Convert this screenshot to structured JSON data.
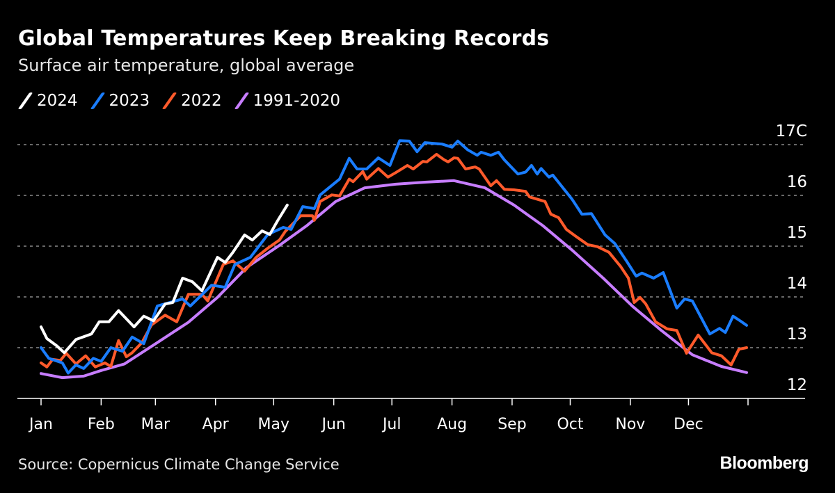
{
  "header": {
    "title": "Global Temperatures Keep Breaking Records",
    "subtitle": "Surface air temperature, global average"
  },
  "footer": {
    "source": "Source: Copernicus Climate Change Service",
    "logo": "Bloomberg"
  },
  "chart_data": {
    "type": "line",
    "title": "Global Temperatures Keep Breaking Records",
    "subtitle": "Surface air temperature, global average",
    "xlabel": "",
    "ylabel": "",
    "x_ticks": [
      "Jan",
      "Feb",
      "Mar",
      "Apr",
      "May",
      "Jun",
      "Jul",
      "Aug",
      "Sep",
      "Oct",
      "Nov",
      "Dec"
    ],
    "y_ticks": [
      {
        "value": 12,
        "label": "12"
      },
      {
        "value": 13,
        "label": "13"
      },
      {
        "value": 14,
        "label": "14"
      },
      {
        "value": 15,
        "label": "15"
      },
      {
        "value": 16,
        "label": "16"
      },
      {
        "value": 17,
        "label": "17C"
      }
    ],
    "ylim": [
      12,
      17
    ],
    "grid": "horizontal dashed",
    "legend_position": "top-left",
    "series": [
      {
        "name": "2024",
        "color": "#ffffff",
        "points": [
          [
            "01-01",
            13.41
          ],
          [
            "01-04",
            13.18
          ],
          [
            "01-09",
            13.04
          ],
          [
            "01-13",
            12.9
          ],
          [
            "01-19",
            13.16
          ],
          [
            "01-27",
            13.27
          ],
          [
            "01-31",
            13.51
          ],
          [
            "02-05",
            13.51
          ],
          [
            "02-10",
            13.73
          ],
          [
            "02-18",
            13.41
          ],
          [
            "02-23",
            13.62
          ],
          [
            "02-28",
            13.53
          ],
          [
            "03-06",
            13.86
          ],
          [
            "03-10",
            13.89
          ],
          [
            "03-15",
            14.37
          ],
          [
            "03-20",
            14.3
          ],
          [
            "03-25",
            14.12
          ],
          [
            "03-30",
            14.53
          ],
          [
            "04-02",
            14.78
          ],
          [
            "04-06",
            14.68
          ],
          [
            "04-10",
            14.88
          ],
          [
            "04-16",
            15.22
          ],
          [
            "04-20",
            15.12
          ],
          [
            "04-25",
            15.3
          ],
          [
            "04-29",
            15.23
          ],
          [
            "05-03",
            15.5
          ],
          [
            "05-08",
            15.81
          ]
        ]
      },
      {
        "name": "2023",
        "color": "#1a7dff",
        "points": [
          [
            "01-01",
            13.0
          ],
          [
            "01-05",
            12.79
          ],
          [
            "01-12",
            12.7
          ],
          [
            "01-15",
            12.5
          ],
          [
            "01-19",
            12.66
          ],
          [
            "01-23",
            12.59
          ],
          [
            "01-28",
            12.79
          ],
          [
            "02-01",
            12.73
          ],
          [
            "02-06",
            13.0
          ],
          [
            "02-12",
            12.93
          ],
          [
            "02-17",
            13.21
          ],
          [
            "02-23",
            13.08
          ],
          [
            "03-02",
            13.82
          ],
          [
            "03-15",
            13.96
          ],
          [
            "03-19",
            13.82
          ],
          [
            "03-30",
            14.23
          ],
          [
            "04-06",
            14.19
          ],
          [
            "04-11",
            14.64
          ],
          [
            "04-19",
            14.78
          ],
          [
            "04-28",
            15.23
          ],
          [
            "05-06",
            15.37
          ],
          [
            "05-10",
            15.33
          ],
          [
            "05-16",
            15.78
          ],
          [
            "05-22",
            15.74
          ],
          [
            "05-25",
            16.01
          ],
          [
            "06-04",
            16.32
          ],
          [
            "06-09",
            16.73
          ],
          [
            "06-13",
            16.52
          ],
          [
            "06-18",
            16.52
          ],
          [
            "06-24",
            16.74
          ],
          [
            "06-30",
            16.59
          ],
          [
            "07-05",
            17.08
          ],
          [
            "07-10",
            17.07
          ],
          [
            "07-14",
            16.86
          ],
          [
            "07-18",
            17.04
          ],
          [
            "07-27",
            17.01
          ],
          [
            "08-01",
            16.95
          ],
          [
            "08-04",
            17.07
          ],
          [
            "08-09",
            16.9
          ],
          [
            "08-14",
            16.79
          ],
          [
            "08-16",
            16.85
          ],
          [
            "08-21",
            16.79
          ],
          [
            "08-25",
            16.85
          ],
          [
            "08-28",
            16.7
          ],
          [
            "09-04",
            16.42
          ],
          [
            "09-08",
            16.46
          ],
          [
            "09-11",
            16.59
          ],
          [
            "09-14",
            16.42
          ],
          [
            "09-16",
            16.53
          ],
          [
            "09-20",
            16.36
          ],
          [
            "09-22",
            16.4
          ],
          [
            "10-02",
            15.92
          ],
          [
            "10-07",
            15.63
          ],
          [
            "10-12",
            15.64
          ],
          [
            "10-19",
            15.22
          ],
          [
            "10-24",
            15.05
          ],
          [
            "10-30",
            14.71
          ],
          [
            "11-04",
            14.41
          ],
          [
            "11-07",
            14.47
          ],
          [
            "11-13",
            14.37
          ],
          [
            "11-18",
            14.48
          ],
          [
            "11-25",
            13.78
          ],
          [
            "11-29",
            13.96
          ],
          [
            "12-03",
            13.92
          ],
          [
            "12-12",
            13.27
          ],
          [
            "12-17",
            13.38
          ],
          [
            "12-20",
            13.3
          ],
          [
            "12-24",
            13.62
          ],
          [
            "12-28",
            13.52
          ],
          [
            "12-31",
            13.44
          ]
        ]
      },
      {
        "name": "2022",
        "color": "#ff5a2b",
        "points": [
          [
            "01-01",
            12.7
          ],
          [
            "01-04",
            12.62
          ],
          [
            "01-07",
            12.77
          ],
          [
            "01-11",
            12.75
          ],
          [
            "01-14",
            12.89
          ],
          [
            "01-19",
            12.68
          ],
          [
            "01-24",
            12.84
          ],
          [
            "01-29",
            12.62
          ],
          [
            "02-03",
            12.7
          ],
          [
            "02-06",
            12.63
          ],
          [
            "02-10",
            13.14
          ],
          [
            "02-14",
            12.82
          ],
          [
            "02-17",
            12.9
          ],
          [
            "02-22",
            13.1
          ],
          [
            "02-27",
            13.45
          ],
          [
            "03-06",
            13.64
          ],
          [
            "03-12",
            13.51
          ],
          [
            "03-18",
            14.05
          ],
          [
            "03-25",
            14.05
          ],
          [
            "03-28",
            13.92
          ],
          [
            "03-31",
            14.19
          ],
          [
            "04-05",
            14.64
          ],
          [
            "04-10",
            14.71
          ],
          [
            "04-16",
            14.51
          ],
          [
            "04-22",
            14.78
          ],
          [
            "04-28",
            14.96
          ],
          [
            "05-04",
            15.12
          ],
          [
            "05-07",
            15.29
          ],
          [
            "05-15",
            15.6
          ],
          [
            "05-21",
            15.6
          ],
          [
            "05-22",
            15.51
          ],
          [
            "05-25",
            15.88
          ],
          [
            "05-31",
            16.01
          ],
          [
            "06-04",
            15.99
          ],
          [
            "06-09",
            16.32
          ],
          [
            "06-11",
            16.27
          ],
          [
            "06-16",
            16.47
          ],
          [
            "06-18",
            16.32
          ],
          [
            "06-24",
            16.53
          ],
          [
            "06-29",
            16.36
          ],
          [
            "07-03",
            16.45
          ],
          [
            "07-09",
            16.59
          ],
          [
            "07-12",
            16.52
          ],
          [
            "07-17",
            16.67
          ],
          [
            "07-19",
            16.66
          ],
          [
            "07-24",
            16.81
          ],
          [
            "07-28",
            16.7
          ],
          [
            "07-30",
            16.66
          ],
          [
            "08-02",
            16.74
          ],
          [
            "08-04",
            16.73
          ],
          [
            "08-08",
            16.52
          ],
          [
            "08-13",
            16.56
          ],
          [
            "08-15",
            16.52
          ],
          [
            "08-21",
            16.19
          ],
          [
            "08-24",
            16.29
          ],
          [
            "08-28",
            16.12
          ],
          [
            "09-02",
            16.11
          ],
          [
            "09-08",
            16.08
          ],
          [
            "09-10",
            15.97
          ],
          [
            "09-18",
            15.88
          ],
          [
            "09-21",
            15.63
          ],
          [
            "09-25",
            15.56
          ],
          [
            "09-29",
            15.33
          ],
          [
            "10-04",
            15.19
          ],
          [
            "10-10",
            15.03
          ],
          [
            "10-15",
            14.99
          ],
          [
            "10-21",
            14.88
          ],
          [
            "10-27",
            14.6
          ],
          [
            "10-31",
            14.37
          ],
          [
            "11-03",
            13.89
          ],
          [
            "11-06",
            13.99
          ],
          [
            "11-09",
            13.86
          ],
          [
            "11-14",
            13.51
          ],
          [
            "11-20",
            13.37
          ],
          [
            "11-25",
            13.34
          ],
          [
            "11-30",
            12.89
          ],
          [
            "12-06",
            13.25
          ],
          [
            "12-13",
            12.9
          ],
          [
            "12-18",
            12.84
          ],
          [
            "12-23",
            12.66
          ],
          [
            "12-27",
            12.97
          ],
          [
            "12-31",
            13.0
          ]
        ]
      },
      {
        "name": "1991-2020",
        "color": "#c77dff",
        "points": [
          [
            "01-01",
            12.49
          ],
          [
            "01-12",
            12.41
          ],
          [
            "01-23",
            12.44
          ],
          [
            "02-01",
            12.55
          ],
          [
            "02-13",
            12.68
          ],
          [
            "03-02",
            13.1
          ],
          [
            "03-18",
            13.5
          ],
          [
            "04-02",
            13.99
          ],
          [
            "04-17",
            14.58
          ],
          [
            "05-03",
            14.99
          ],
          [
            "05-18",
            15.4
          ],
          [
            "06-02",
            15.88
          ],
          [
            "06-17",
            16.15
          ],
          [
            "07-03",
            16.22
          ],
          [
            "07-18",
            16.26
          ],
          [
            "08-02",
            16.29
          ],
          [
            "08-18",
            16.15
          ],
          [
            "09-02",
            15.81
          ],
          [
            "09-17",
            15.4
          ],
          [
            "10-02",
            14.92
          ],
          [
            "10-18",
            14.37
          ],
          [
            "11-02",
            13.82
          ],
          [
            "11-17",
            13.34
          ],
          [
            "12-03",
            12.86
          ],
          [
            "12-18",
            12.63
          ],
          [
            "12-31",
            12.51
          ]
        ]
      }
    ]
  }
}
